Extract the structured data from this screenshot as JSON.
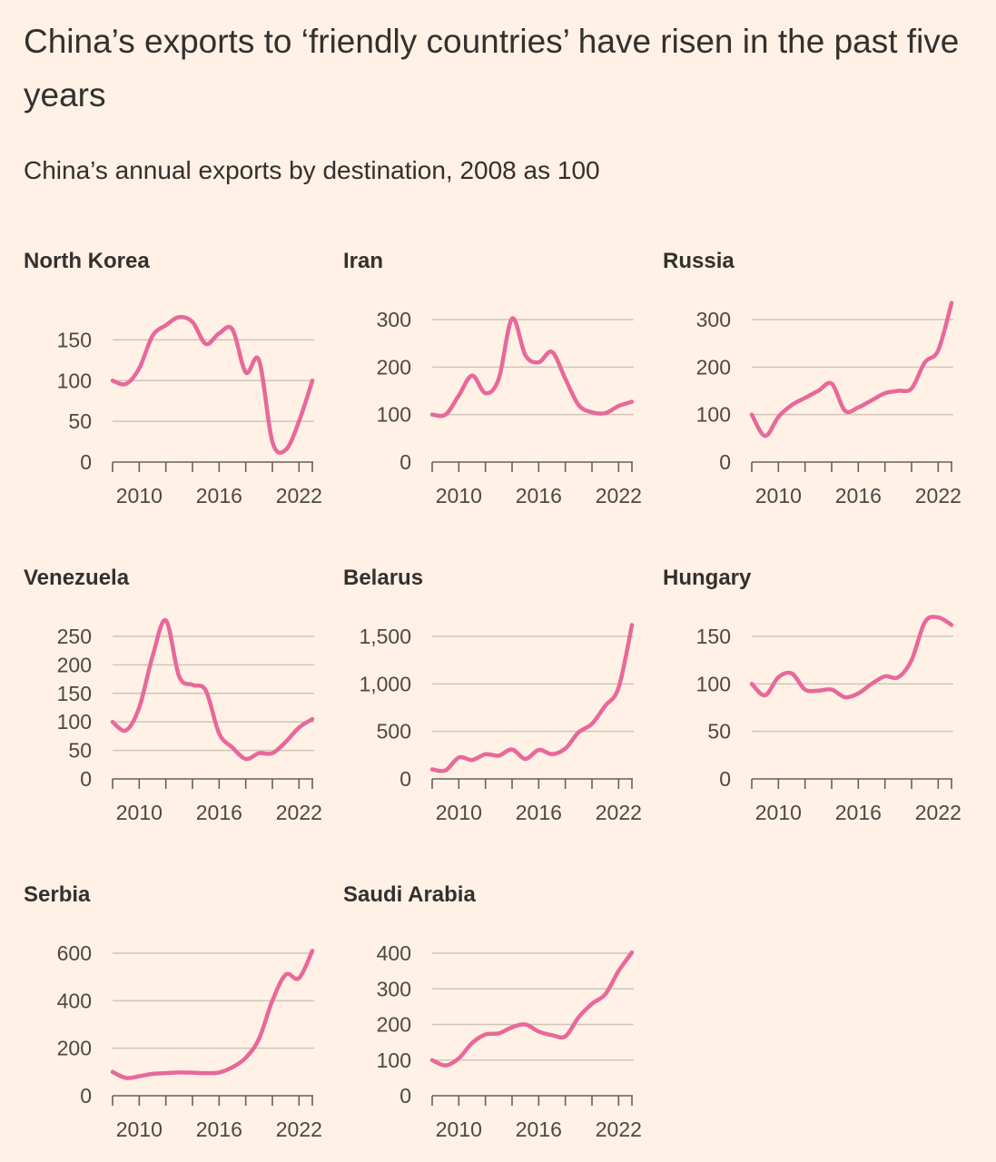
{
  "title": "China’s exports to ‘friendly countries’ have risen in the past five years",
  "subtitle": "China’s annual exports by destination, 2008 as 100",
  "colors": {
    "background": "#FFF1E5",
    "line": "#E8689A",
    "grid": "#CEC6B9",
    "axis": "#66605C",
    "text": "#33302E"
  },
  "chart_data": [
    {
      "type": "line",
      "title": "North Korea",
      "x": [
        2008,
        2009,
        2010,
        2011,
        2012,
        2013,
        2014,
        2015,
        2016,
        2017,
        2018,
        2019,
        2020,
        2021,
        2022,
        2023
      ],
      "values": [
        100,
        96,
        115,
        155,
        168,
        178,
        172,
        145,
        158,
        163,
        110,
        125,
        25,
        15,
        50,
        100
      ],
      "ylim": [
        0,
        175
      ],
      "yticks": [
        0,
        50,
        100,
        150
      ],
      "ytick_labels": [
        "0",
        "50",
        "100",
        "150"
      ],
      "xticks": [
        2010,
        2016,
        2022
      ]
    },
    {
      "type": "line",
      "title": "Iran",
      "x": [
        2008,
        2009,
        2010,
        2011,
        2012,
        2013,
        2014,
        2015,
        2016,
        2017,
        2018,
        2019,
        2020,
        2021,
        2022,
        2023
      ],
      "values": [
        100,
        100,
        140,
        182,
        145,
        175,
        302,
        225,
        210,
        232,
        175,
        120,
        105,
        103,
        118,
        127
      ],
      "ylim": [
        0,
        300
      ],
      "yticks": [
        0,
        100,
        200,
        300
      ],
      "ytick_labels": [
        "0",
        "100",
        "200",
        "300"
      ],
      "xticks": [
        2010,
        2016,
        2022
      ]
    },
    {
      "type": "line",
      "title": "Russia",
      "x": [
        2008,
        2009,
        2010,
        2011,
        2012,
        2013,
        2014,
        2015,
        2016,
        2017,
        2018,
        2019,
        2020,
        2021,
        2022,
        2023
      ],
      "values": [
        100,
        55,
        95,
        120,
        135,
        150,
        165,
        108,
        115,
        130,
        145,
        150,
        155,
        210,
        235,
        335
      ],
      "ylim": [
        0,
        300
      ],
      "yticks": [
        0,
        100,
        200,
        300
      ],
      "ytick_labels": [
        "0",
        "100",
        "200",
        "300"
      ],
      "xticks": [
        2010,
        2016,
        2022
      ]
    },
    {
      "type": "line",
      "title": "Venezuela",
      "x": [
        2008,
        2009,
        2010,
        2011,
        2012,
        2013,
        2014,
        2015,
        2016,
        2017,
        2018,
        2019,
        2020,
        2021,
        2022,
        2023
      ],
      "values": [
        100,
        85,
        125,
        215,
        278,
        180,
        165,
        155,
        80,
        55,
        35,
        45,
        45,
        65,
        90,
        105
      ],
      "ylim": [
        0,
        250
      ],
      "yticks": [
        0,
        50,
        100,
        150,
        200,
        250
      ],
      "ytick_labels": [
        "0",
        "50",
        "100",
        "150",
        "200",
        "250"
      ],
      "xticks": [
        2010,
        2016,
        2022
      ]
    },
    {
      "type": "line",
      "title": "Belarus",
      "x": [
        2008,
        2009,
        2010,
        2011,
        2012,
        2013,
        2014,
        2015,
        2016,
        2017,
        2018,
        2019,
        2020,
        2021,
        2022,
        2023
      ],
      "values": [
        100,
        90,
        225,
        200,
        260,
        245,
        310,
        210,
        305,
        260,
        320,
        490,
        580,
        770,
        960,
        1620
      ],
      "ylim": [
        0,
        1500
      ],
      "yticks": [
        0,
        500,
        1000,
        1500
      ],
      "ytick_labels": [
        "0",
        "500",
        "1,000",
        "1,500"
      ],
      "xticks": [
        2010,
        2016,
        2022
      ]
    },
    {
      "type": "line",
      "title": "Hungary",
      "x": [
        2008,
        2009,
        2010,
        2011,
        2012,
        2013,
        2014,
        2015,
        2016,
        2017,
        2018,
        2019,
        2020,
        2021,
        2022,
        2023
      ],
      "values": [
        100,
        88,
        107,
        111,
        94,
        93,
        94,
        86,
        90,
        100,
        108,
        107,
        125,
        165,
        170,
        162
      ],
      "ylim": [
        0,
        150
      ],
      "yticks": [
        0,
        50,
        100,
        150
      ],
      "ytick_labels": [
        "0",
        "50",
        "100",
        "150"
      ],
      "xticks": [
        2010,
        2016,
        2022
      ]
    },
    {
      "type": "line",
      "title": "Serbia",
      "x": [
        2008,
        2009,
        2010,
        2011,
        2012,
        2013,
        2014,
        2015,
        2016,
        2017,
        2018,
        2019,
        2020,
        2021,
        2022,
        2023
      ],
      "values": [
        100,
        75,
        82,
        92,
        95,
        98,
        97,
        95,
        98,
        120,
        160,
        240,
        400,
        510,
        495,
        610
      ],
      "ylim": [
        0,
        600
      ],
      "yticks": [
        0,
        200,
        400,
        600
      ],
      "ytick_labels": [
        "0",
        "200",
        "400",
        "600"
      ],
      "xticks": [
        2010,
        2016,
        2022
      ]
    },
    {
      "type": "line",
      "title": "Saudi Arabia",
      "x": [
        2008,
        2009,
        2010,
        2011,
        2012,
        2013,
        2014,
        2015,
        2016,
        2017,
        2018,
        2019,
        2020,
        2021,
        2022,
        2023
      ],
      "values": [
        100,
        85,
        105,
        148,
        172,
        175,
        192,
        200,
        180,
        170,
        167,
        220,
        258,
        285,
        350,
        402
      ],
      "ylim": [
        0,
        400
      ],
      "yticks": [
        0,
        100,
        200,
        300,
        400
      ],
      "ytick_labels": [
        "0",
        "100",
        "200",
        "300",
        "400"
      ],
      "xticks": [
        2010,
        2016,
        2022
      ]
    }
  ]
}
